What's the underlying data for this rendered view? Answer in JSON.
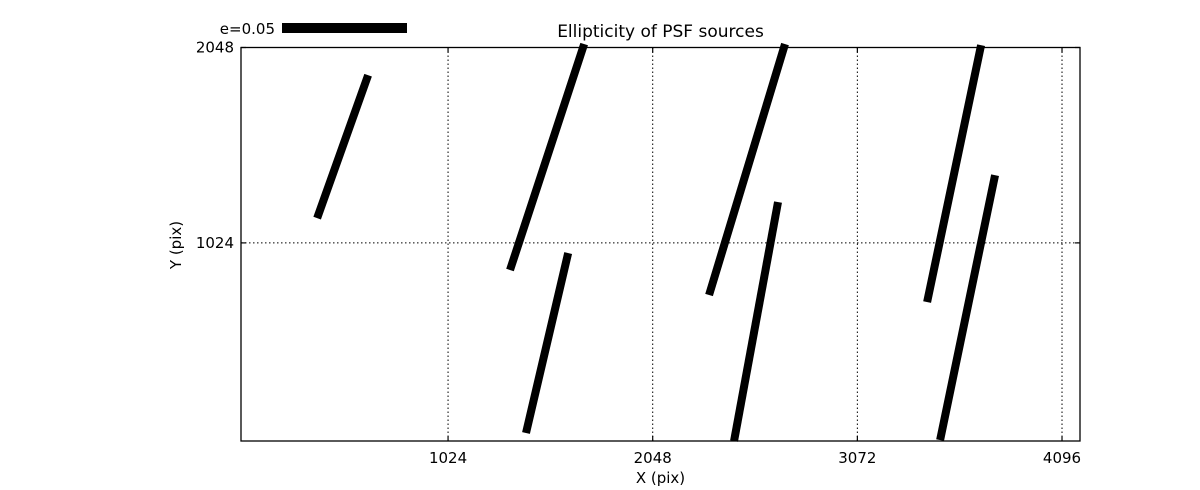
{
  "figure": {
    "title": "Ellipticity of PSF sources",
    "xlabel": "X (pix)",
    "ylabel": "Y (pix)",
    "legend_label": "e=0.05"
  },
  "chart_data": {
    "type": "line",
    "subtype": "quiver-whisker-plot",
    "title": "Ellipticity of PSF sources",
    "xlabel": "X (pix)",
    "ylabel": "Y (pix)",
    "xlim": [
      -12,
      4186
    ],
    "ylim": [
      -14,
      2048
    ],
    "xticks": [
      1024,
      2048,
      3072,
      4096
    ],
    "xtick_labels": [
      "1024",
      "2048",
      "3072",
      "4096"
    ],
    "yticks": [
      1024,
      2048
    ],
    "ytick_labels": [
      "1024",
      "2048"
    ],
    "grid": "dotted",
    "legend": {
      "label": "e=0.05",
      "position": "top-left-above-axes"
    },
    "colors": {
      "line": "#000000",
      "grid": "#000000",
      "axis": "#000000",
      "background": "#ffffff"
    },
    "segments": [
      {
        "x1": 369,
        "y1": 1154,
        "x2": 624,
        "y2": 1903
      },
      {
        "x1": 1334,
        "y1": 882,
        "x2": 1705,
        "y2": 2066
      },
      {
        "x1": 1414,
        "y1": 28,
        "x2": 1625,
        "y2": 971
      },
      {
        "x1": 2330,
        "y1": 751,
        "x2": 2710,
        "y2": 2066
      },
      {
        "x1": 2455,
        "y1": -14,
        "x2": 2675,
        "y2": 1238
      },
      {
        "x1": 3421,
        "y1": 714,
        "x2": 3691,
        "y2": 2060
      },
      {
        "x1": 3486,
        "y1": -9,
        "x2": 3761,
        "y2": 1379
      }
    ]
  }
}
